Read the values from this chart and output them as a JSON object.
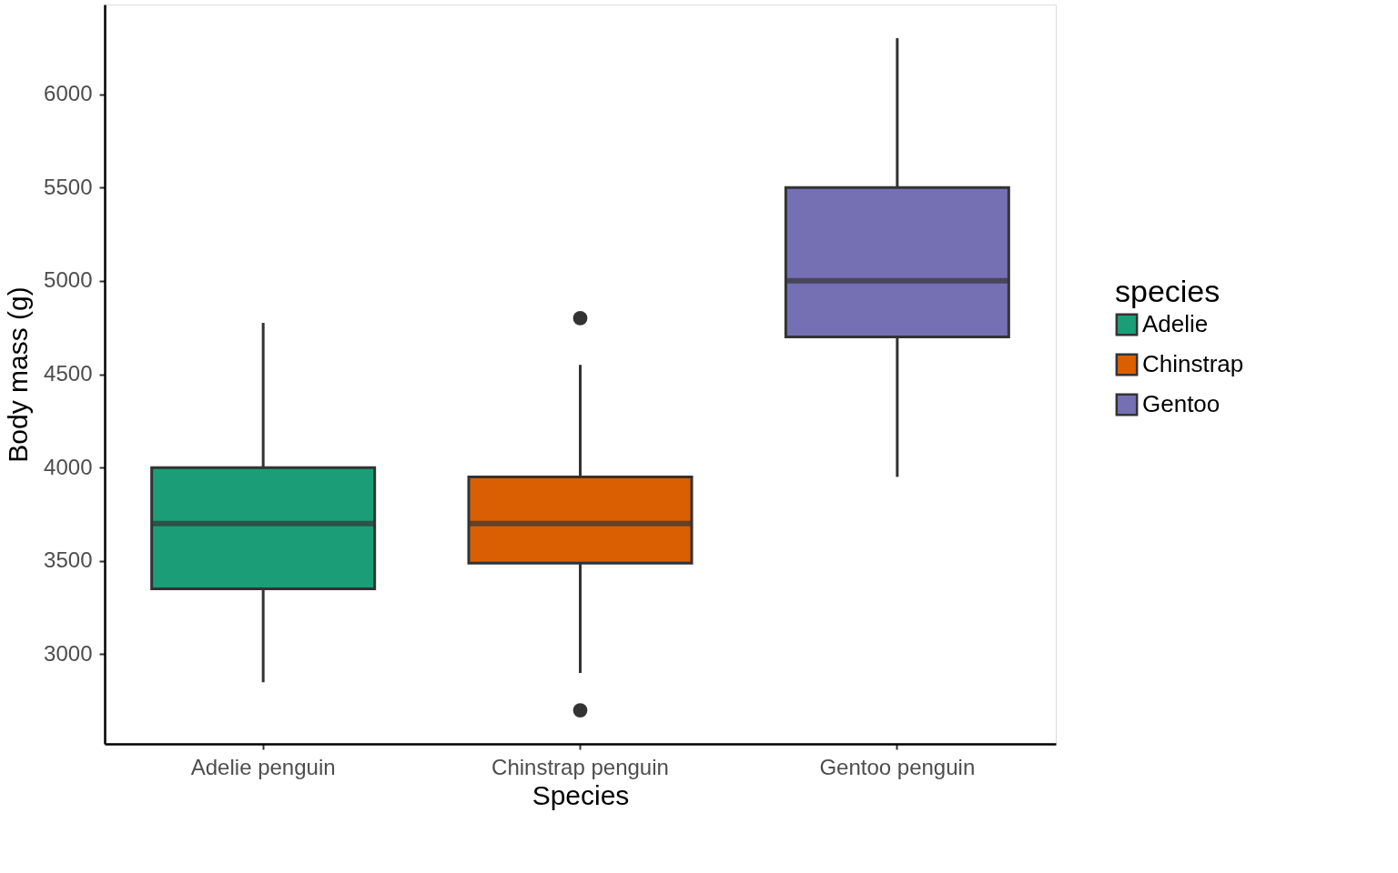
{
  "chart_data": {
    "type": "box",
    "xlabel": "Species",
    "ylabel": "Body mass (g)",
    "legend_title": "species",
    "categories": [
      "Adelie penguin",
      "Chinstrap penguin",
      "Gentoo penguin"
    ],
    "series": [
      {
        "name": "Adelie",
        "color": "#1b9e77",
        "boxes": [
          {
            "low": 2850,
            "q1": 3350,
            "median": 3700,
            "q3": 4000,
            "high": 4775
          },
          null,
          null
        ]
      },
      {
        "name": "Chinstrap",
        "color": "#d95f02",
        "boxes": [
          null,
          {
            "low": 2900,
            "q1": 3487.5,
            "median": 3700,
            "q3": 3950,
            "high": 4550,
            "outliers": [
              2700,
              4800
            ]
          },
          null
        ]
      },
      {
        "name": "Gentoo",
        "color": "#7570b3",
        "boxes": [
          null,
          null,
          {
            "low": 3950,
            "q1": 4700,
            "median": 5000,
            "q3": 5500,
            "high": 6300
          }
        ]
      }
    ],
    "ylim": [
      2520,
      6480
    ],
    "yticks": [
      3000,
      3500,
      4000,
      4500,
      5000,
      5500,
      6000
    ],
    "grid": false,
    "legend": "right"
  }
}
